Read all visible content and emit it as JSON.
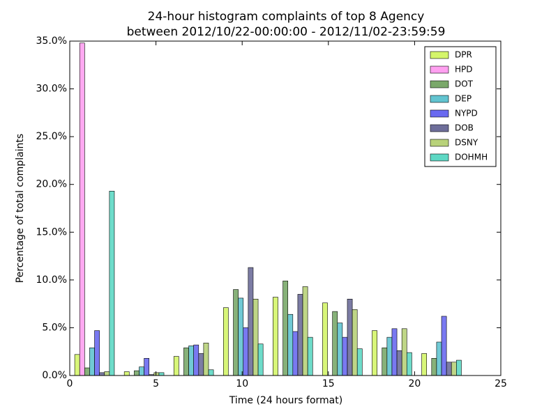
{
  "chart_data": {
    "type": "histogram",
    "title": "24-hour histogram complaints of top 8 Agency",
    "subtitle": "between 2012/10/22-00:00:00 - 2012/11/02-23:59:59",
    "x_label": "Time (24 hours format)",
    "y_label": "Percentage of total complaints",
    "bins": [
      0,
      2.875,
      5.75,
      8.625,
      11.5,
      14.375,
      17.25,
      20.125,
      23
    ],
    "series": [
      {
        "name": "DPR",
        "color": "#d4f56a",
        "values": [
          2.2,
          0.4,
          2.0,
          7.1,
          8.2,
          7.6,
          4.7,
          2.3
        ]
      },
      {
        "name": "HPD",
        "color": "#ffa0f0",
        "values": [
          34.8,
          0,
          0,
          0,
          0,
          0,
          0,
          0
        ]
      },
      {
        "name": "DOT",
        "color": "#7aa86a",
        "values": [
          0.8,
          0.5,
          2.9,
          9.0,
          9.9,
          6.7,
          2.9,
          1.8
        ]
      },
      {
        "name": "DEP",
        "color": "#62c4d0",
        "values": [
          2.9,
          0.9,
          3.1,
          8.1,
          6.4,
          5.5,
          4.0,
          3.5
        ]
      },
      {
        "name": "NYPD",
        "color": "#6a6af0",
        "values": [
          4.7,
          1.8,
          3.2,
          5.0,
          4.6,
          4.0,
          4.9,
          6.2
        ]
      },
      {
        "name": "DOB",
        "color": "#6e6e9a",
        "values": [
          0.3,
          0.1,
          2.3,
          11.3,
          8.5,
          8.0,
          2.6,
          1.4
        ]
      },
      {
        "name": "DSNY",
        "color": "#b8d27a",
        "values": [
          0.4,
          0.3,
          3.4,
          8.0,
          9.3,
          6.9,
          4.9,
          1.4
        ]
      },
      {
        "name": "DOHMH",
        "color": "#5ed8c4",
        "values": [
          19.3,
          0.3,
          0.6,
          3.3,
          4.0,
          2.8,
          2.4,
          1.6
        ]
      }
    ],
    "xlim": [
      0,
      25
    ],
    "xticks": [
      0,
      5,
      10,
      15,
      20,
      25
    ],
    "ylim": [
      0,
      35
    ],
    "yticks": [
      {
        "value": 0,
        "label": "0.0%"
      },
      {
        "value": 5,
        "label": "5.0%"
      },
      {
        "value": 10,
        "label": "10.0%"
      },
      {
        "value": 15,
        "label": "15.0%"
      },
      {
        "value": 20,
        "label": "20.0%"
      },
      {
        "value": 25,
        "label": "25.0%"
      },
      {
        "value": 30,
        "label": "30.0%"
      },
      {
        "value": 35,
        "label": "35.0%"
      }
    ],
    "grid": false,
    "legend": "upper right"
  }
}
